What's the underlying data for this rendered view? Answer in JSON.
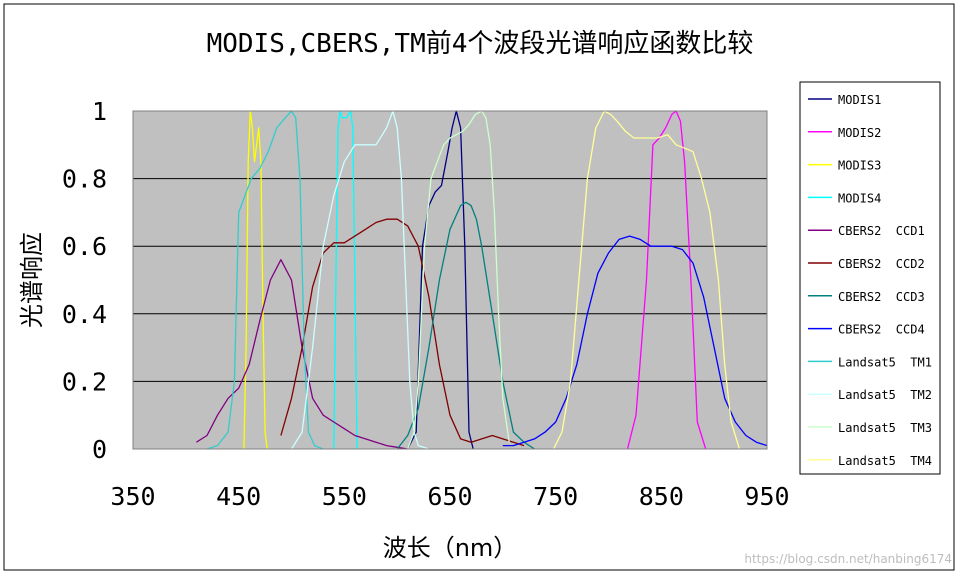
{
  "chart_data": {
    "type": "line",
    "title": "MODIS,CBERS,TM前4个波段光谱响应函数比较",
    "xlabel": "波长（nm）",
    "ylabel": "光谱响应",
    "xlim": [
      350,
      950
    ],
    "ylim": [
      0,
      1
    ],
    "xticks": [
      "350",
      "450",
      "550",
      "650",
      "750",
      "850",
      "950"
    ],
    "yticks": [
      "0",
      "0.2",
      "0.4",
      "0.6",
      "0.8",
      "1"
    ],
    "grid": "horizontal",
    "legend_position": "right",
    "plot_background": "#c0c0c0",
    "series": [
      {
        "name": "MODIS1",
        "color": "#000080",
        "x": [
          610,
          618,
          624,
          630,
          636,
          642,
          648,
          652,
          656,
          660,
          664,
          668,
          672
        ],
        "y": [
          0,
          0.05,
          0.6,
          0.72,
          0.76,
          0.78,
          0.88,
          0.95,
          1.0,
          0.95,
          0.6,
          0.05,
          0
        ]
      },
      {
        "name": "MODIS2",
        "color": "#ff00ff",
        "x": [
          818,
          826,
          836,
          842,
          848,
          854,
          860,
          864,
          868,
          872,
          878,
          884,
          892
        ],
        "y": [
          0,
          0.1,
          0.5,
          0.9,
          0.92,
          0.95,
          0.99,
          1.0,
          0.97,
          0.85,
          0.5,
          0.08,
          0
        ]
      },
      {
        "name": "MODIS3",
        "color": "#ffff00",
        "x": [
          455,
          457,
          459,
          461,
          463,
          465,
          467,
          469,
          471,
          473,
          475,
          477
        ],
        "y": [
          0,
          0.3,
          0.85,
          1.0,
          0.95,
          0.85,
          0.9,
          0.95,
          0.85,
          0.4,
          0.05,
          0
        ]
      },
      {
        "name": "MODIS4",
        "color": "#00ffff",
        "x": [
          540,
          542,
          544,
          546,
          548,
          552,
          556,
          558,
          560,
          562
        ],
        "y": [
          0,
          0.5,
          0.95,
          1.0,
          0.98,
          0.98,
          1.0,
          0.95,
          0.5,
          0
        ]
      },
      {
        "name": "CBERS2  CCD1",
        "color": "#800080",
        "x": [
          410,
          420,
          430,
          440,
          450,
          460,
          470,
          480,
          490,
          500,
          510,
          520,
          530,
          540,
          550,
          560,
          570,
          580,
          590,
          600,
          610
        ],
        "y": [
          0.02,
          0.04,
          0.1,
          0.15,
          0.18,
          0.25,
          0.38,
          0.5,
          0.56,
          0.5,
          0.3,
          0.15,
          0.1,
          0.08,
          0.06,
          0.04,
          0.03,
          0.02,
          0.01,
          0.005,
          0
        ]
      },
      {
        "name": "CBERS2  CCD2",
        "color": "#800000",
        "x": [
          490,
          500,
          510,
          520,
          530,
          540,
          550,
          560,
          570,
          580,
          590,
          600,
          610,
          620,
          630,
          640,
          650,
          660,
          670,
          680,
          690,
          700,
          710,
          720
        ],
        "y": [
          0.04,
          0.15,
          0.3,
          0.48,
          0.58,
          0.61,
          0.61,
          0.63,
          0.65,
          0.67,
          0.68,
          0.68,
          0.66,
          0.6,
          0.45,
          0.25,
          0.1,
          0.03,
          0.02,
          0.03,
          0.04,
          0.03,
          0.02,
          0.01
        ]
      },
      {
        "name": "CBERS2  CCD3",
        "color": "#008080",
        "x": [
          600,
          610,
          620,
          630,
          640,
          650,
          660,
          665,
          670,
          675,
          680,
          690,
          700,
          710,
          720,
          730
        ],
        "y": [
          0,
          0.04,
          0.12,
          0.3,
          0.5,
          0.65,
          0.72,
          0.73,
          0.72,
          0.68,
          0.6,
          0.4,
          0.2,
          0.05,
          0.02,
          0
        ]
      },
      {
        "name": "CBERS2  CCD4",
        "color": "#0000ff",
        "x": [
          700,
          710,
          720,
          730,
          740,
          750,
          760,
          770,
          780,
          790,
          800,
          810,
          820,
          830,
          840,
          850,
          860,
          870,
          880,
          890,
          900,
          910,
          920,
          930,
          940,
          950
        ],
        "y": [
          0.01,
          0.01,
          0.02,
          0.03,
          0.05,
          0.08,
          0.15,
          0.25,
          0.4,
          0.52,
          0.58,
          0.62,
          0.63,
          0.62,
          0.6,
          0.6,
          0.6,
          0.59,
          0.55,
          0.45,
          0.3,
          0.15,
          0.08,
          0.04,
          0.02,
          0.01
        ]
      },
      {
        "name": "Landsat5  TM1",
        "color": "#33cccc",
        "x": [
          420,
          430,
          440,
          446,
          450,
          456,
          462,
          470,
          478,
          486,
          494,
          500,
          504,
          508,
          512,
          516,
          522,
          530
        ],
        "y": [
          0,
          0.01,
          0.05,
          0.2,
          0.7,
          0.75,
          0.8,
          0.83,
          0.88,
          0.95,
          0.98,
          1.0,
          0.98,
          0.8,
          0.3,
          0.05,
          0.01,
          0
        ]
      },
      {
        "name": "Landsat5  TM2",
        "color": "#ccffff",
        "x": [
          500,
          510,
          520,
          530,
          540,
          550,
          560,
          570,
          580,
          590,
          596,
          600,
          604,
          608,
          612,
          616,
          620,
          630
        ],
        "y": [
          0,
          0.05,
          0.3,
          0.6,
          0.75,
          0.85,
          0.9,
          0.9,
          0.9,
          0.95,
          1.0,
          0.95,
          0.8,
          0.5,
          0.2,
          0.05,
          0.01,
          0
        ]
      },
      {
        "name": "Landsat5  TM3",
        "color": "#ccffcc",
        "x": [
          610,
          616,
          620,
          626,
          632,
          638,
          644,
          650,
          656,
          662,
          668,
          674,
          680,
          684,
          688,
          692,
          696,
          700,
          706
        ],
        "y": [
          0,
          0.05,
          0.2,
          0.6,
          0.8,
          0.85,
          0.9,
          0.92,
          0.93,
          0.94,
          0.96,
          0.99,
          1.0,
          0.98,
          0.9,
          0.7,
          0.4,
          0.15,
          0.02
        ]
      },
      {
        "name": "Landsat5  TM4",
        "color": "#ffff99",
        "x": [
          748,
          756,
          764,
          772,
          780,
          788,
          796,
          802,
          808,
          816,
          824,
          834,
          846,
          856,
          864,
          872,
          880,
          888,
          896,
          904,
          910,
          916,
          924
        ],
        "y": [
          0,
          0.05,
          0.2,
          0.5,
          0.8,
          0.95,
          1.0,
          0.99,
          0.97,
          0.94,
          0.92,
          0.92,
          0.92,
          0.93,
          0.9,
          0.89,
          0.88,
          0.8,
          0.7,
          0.5,
          0.25,
          0.08,
          0
        ]
      }
    ]
  },
  "watermark": "https://blog.csdn.net/hanbing6174"
}
